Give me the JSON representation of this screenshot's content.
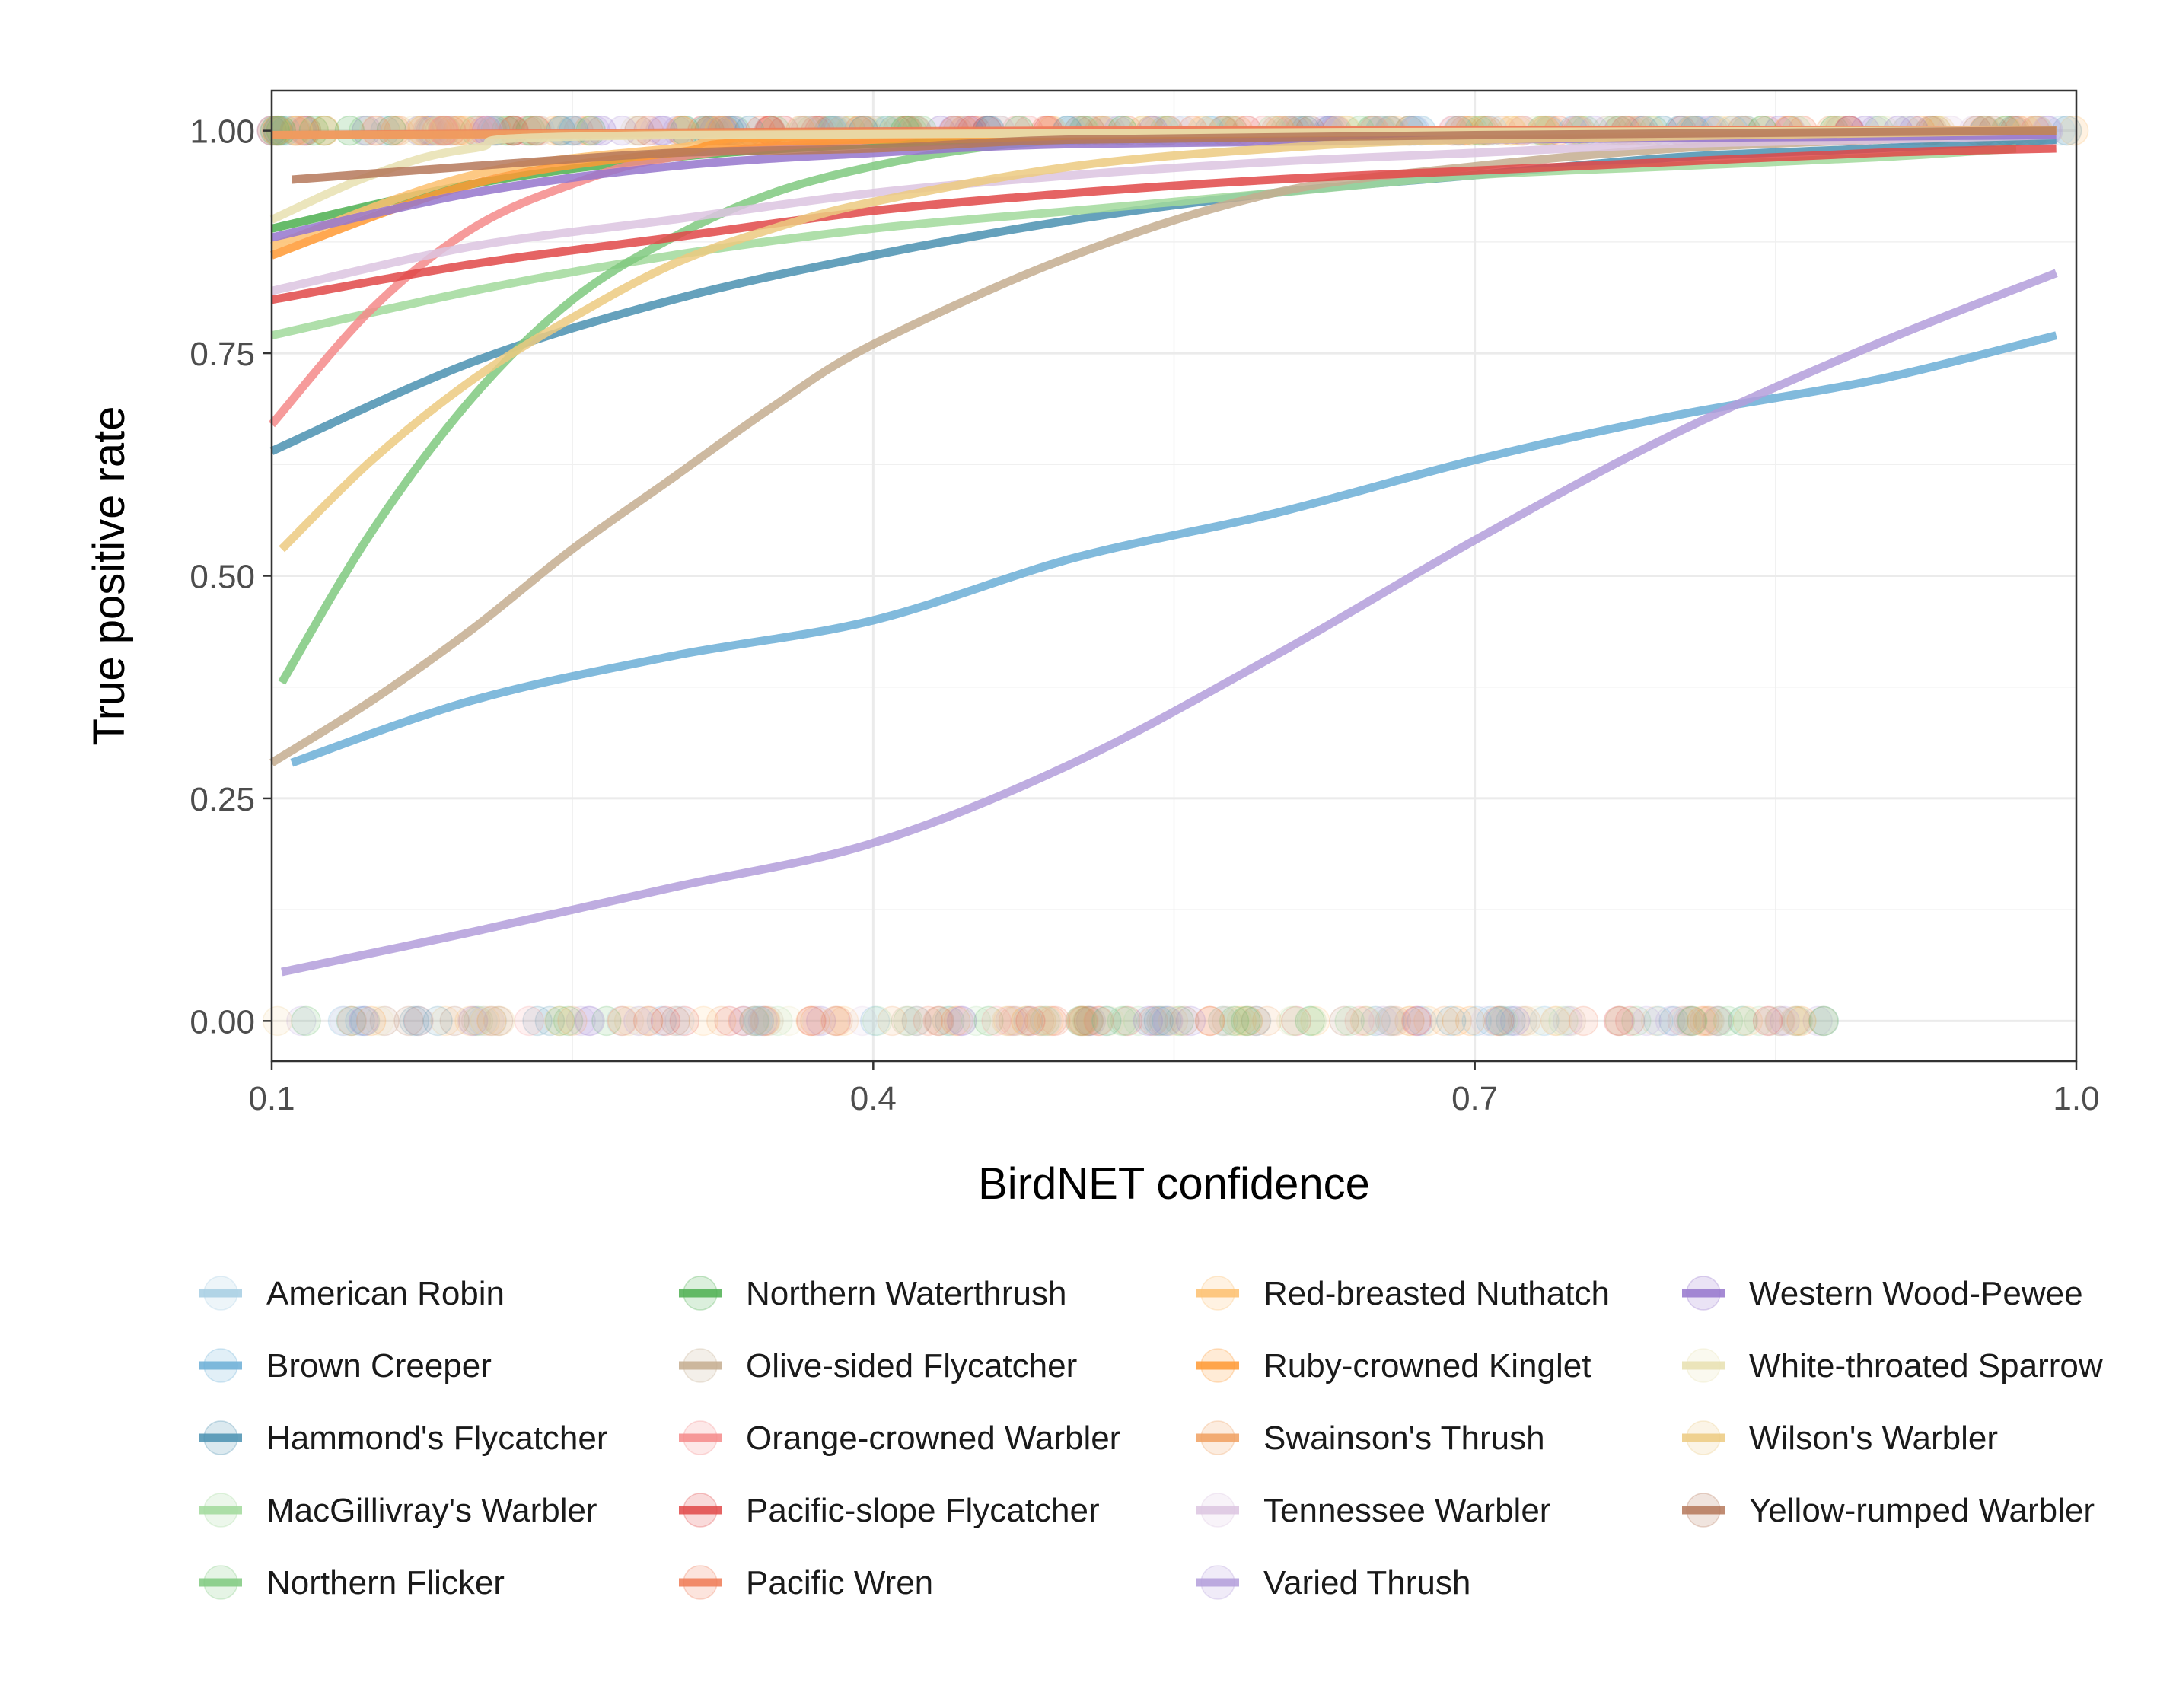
{
  "chart_data": {
    "type": "line",
    "title": "",
    "xlabel": "BirdNET confidence",
    "ylabel": "True positive rate",
    "xlim": [
      0.1,
      1.0
    ],
    "ylim": [
      -0.045,
      1.045
    ],
    "x_ticks": [
      "0.1",
      "0.4",
      "0.7",
      "1.0"
    ],
    "y_ticks": [
      "0.00",
      "0.25",
      "0.50",
      "0.75",
      "1.00"
    ],
    "grid": true,
    "legend_position": "bottom",
    "series": [
      {
        "name": "American Robin",
        "color": "#a6cee3",
        "points": []
      },
      {
        "name": "Brown Creeper",
        "color": "#6baed6",
        "points": [
          [
            0.11,
            0.29
          ],
          [
            0.2,
            0.36
          ],
          [
            0.3,
            0.41
          ],
          [
            0.4,
            0.45
          ],
          [
            0.5,
            0.52
          ],
          [
            0.6,
            0.57
          ],
          [
            0.7,
            0.63
          ],
          [
            0.8,
            0.68
          ],
          [
            0.9,
            0.72
          ],
          [
            0.99,
            0.77
          ]
        ]
      },
      {
        "name": "Hammond's Flycatcher",
        "color": "#4a90b0",
        "points": [
          [
            0.1,
            0.64
          ],
          [
            0.2,
            0.74
          ],
          [
            0.3,
            0.81
          ],
          [
            0.4,
            0.86
          ],
          [
            0.5,
            0.9
          ],
          [
            0.6,
            0.93
          ],
          [
            0.7,
            0.95
          ],
          [
            0.8,
            0.97
          ],
          [
            0.9,
            0.98
          ],
          [
            0.99,
            0.99
          ]
        ]
      },
      {
        "name": "MacGillivray's Warbler",
        "color": "#a1d99b",
        "points": [
          [
            0.1,
            0.77
          ],
          [
            0.2,
            0.82
          ],
          [
            0.3,
            0.86
          ],
          [
            0.4,
            0.89
          ],
          [
            0.5,
            0.91
          ],
          [
            0.6,
            0.93
          ],
          [
            0.7,
            0.95
          ],
          [
            0.8,
            0.96
          ],
          [
            0.9,
            0.97
          ],
          [
            0.97,
            0.98
          ]
        ]
      },
      {
        "name": "Northern Flicker",
        "color": "#7fc97f",
        "points": [
          [
            0.105,
            0.38
          ],
          [
            0.15,
            0.55
          ],
          [
            0.2,
            0.7
          ],
          [
            0.25,
            0.81
          ],
          [
            0.3,
            0.88
          ],
          [
            0.35,
            0.93
          ],
          [
            0.4,
            0.96
          ],
          [
            0.45,
            0.98
          ],
          [
            0.5,
            0.99
          ],
          [
            0.6,
            1.0
          ],
          [
            0.99,
            1.0
          ]
        ]
      },
      {
        "name": "Northern Waterthrush",
        "color": "#4caf50",
        "points": [
          [
            0.1,
            0.89
          ],
          [
            0.2,
            0.94
          ],
          [
            0.3,
            0.97
          ],
          [
            0.4,
            0.985
          ],
          [
            0.5,
            0.99
          ],
          [
            0.7,
            0.995
          ],
          [
            0.99,
            1.0
          ]
        ]
      },
      {
        "name": "Olive-sided Flycatcher",
        "color": "#c4ad8f",
        "points": [
          [
            0.1,
            0.29
          ],
          [
            0.15,
            0.36
          ],
          [
            0.2,
            0.44
          ],
          [
            0.25,
            0.53
          ],
          [
            0.3,
            0.61
          ],
          [
            0.35,
            0.69
          ],
          [
            0.4,
            0.76
          ],
          [
            0.5,
            0.86
          ],
          [
            0.6,
            0.93
          ],
          [
            0.7,
            0.96
          ],
          [
            0.8,
            0.98
          ],
          [
            0.9,
            0.99
          ],
          [
            0.99,
            1.0
          ]
        ]
      },
      {
        "name": "Orange-crowned Warbler",
        "color": "#f48a8a",
        "points": [
          [
            0.1,
            0.67
          ],
          [
            0.15,
            0.8
          ],
          [
            0.2,
            0.89
          ],
          [
            0.25,
            0.94
          ],
          [
            0.3,
            0.97
          ],
          [
            0.4,
            0.99
          ],
          [
            0.5,
            1.0
          ],
          [
            0.99,
            1.0
          ]
        ]
      },
      {
        "name": "Pacific-slope Flycatcher",
        "color": "#e04848",
        "points": [
          [
            0.1,
            0.81
          ],
          [
            0.2,
            0.85
          ],
          [
            0.3,
            0.88
          ],
          [
            0.4,
            0.91
          ],
          [
            0.5,
            0.93
          ],
          [
            0.6,
            0.945
          ],
          [
            0.7,
            0.955
          ],
          [
            0.8,
            0.965
          ],
          [
            0.9,
            0.975
          ],
          [
            0.99,
            0.98
          ]
        ]
      },
      {
        "name": "Pacific Wren",
        "color": "#ef7a55",
        "points": [
          [
            0.1,
            0.995
          ],
          [
            0.5,
            1.0
          ],
          [
            0.99,
            1.0
          ]
        ]
      },
      {
        "name": "Red-breasted Nuthatch",
        "color": "#fdbf6f",
        "points": [
          [
            0.1,
            0.87
          ],
          [
            0.2,
            0.95
          ],
          [
            0.3,
            0.98
          ],
          [
            0.4,
            0.995
          ],
          [
            0.99,
            1.0
          ]
        ]
      },
      {
        "name": "Ruby-crowned Kinglet",
        "color": "#ff9933",
        "points": [
          [
            0.1,
            0.86
          ],
          [
            0.2,
            0.94
          ],
          [
            0.3,
            0.975
          ],
          [
            0.4,
            0.99
          ],
          [
            0.99,
            1.0
          ]
        ]
      },
      {
        "name": "Swainson's Thrush",
        "color": "#f0a060",
        "points": [
          [
            0.1,
            0.995
          ],
          [
            0.99,
            1.0
          ]
        ]
      },
      {
        "name": "Tennessee Warbler",
        "color": "#dcc4e0",
        "points": [
          [
            0.1,
            0.82
          ],
          [
            0.2,
            0.87
          ],
          [
            0.3,
            0.9
          ],
          [
            0.4,
            0.93
          ],
          [
            0.5,
            0.95
          ],
          [
            0.6,
            0.965
          ],
          [
            0.7,
            0.975
          ],
          [
            0.8,
            0.985
          ],
          [
            0.9,
            0.99
          ],
          [
            0.99,
            0.995
          ]
        ]
      },
      {
        "name": "Varied Thrush",
        "color": "#b39ddb",
        "points": [
          [
            0.105,
            0.055
          ],
          [
            0.2,
            0.1
          ],
          [
            0.3,
            0.15
          ],
          [
            0.4,
            0.2
          ],
          [
            0.5,
            0.29
          ],
          [
            0.6,
            0.41
          ],
          [
            0.7,
            0.54
          ],
          [
            0.8,
            0.66
          ],
          [
            0.9,
            0.76
          ],
          [
            0.99,
            0.84
          ]
        ]
      },
      {
        "name": "Western Wood-Pewee",
        "color": "#9575cd",
        "points": [
          [
            0.1,
            0.88
          ],
          [
            0.2,
            0.93
          ],
          [
            0.3,
            0.96
          ],
          [
            0.4,
            0.975
          ],
          [
            0.5,
            0.985
          ],
          [
            0.7,
            0.99
          ],
          [
            0.99,
            0.995
          ]
        ]
      },
      {
        "name": "White-throated Sparrow",
        "color": "#e8e0b0",
        "points": [
          [
            0.1,
            0.9
          ],
          [
            0.15,
            0.95
          ],
          [
            0.2,
            0.98
          ],
          [
            0.3,
            0.995
          ],
          [
            0.99,
            1.0
          ]
        ]
      },
      {
        "name": "Wilson's Warbler",
        "color": "#ecca80",
        "points": [
          [
            0.105,
            0.53
          ],
          [
            0.15,
            0.63
          ],
          [
            0.2,
            0.72
          ],
          [
            0.25,
            0.79
          ],
          [
            0.3,
            0.85
          ],
          [
            0.35,
            0.89
          ],
          [
            0.4,
            0.92
          ],
          [
            0.5,
            0.96
          ],
          [
            0.6,
            0.98
          ],
          [
            0.7,
            0.99
          ],
          [
            0.99,
            1.0
          ]
        ]
      },
      {
        "name": "Yellow-rumped Warbler",
        "color": "#b5785a",
        "points": [
          [
            0.11,
            0.945
          ],
          [
            0.2,
            0.96
          ],
          [
            0.3,
            0.975
          ],
          [
            0.4,
            0.98
          ],
          [
            0.5,
            0.99
          ],
          [
            0.7,
            0.995
          ],
          [
            0.99,
            1.0
          ]
        ]
      }
    ]
  }
}
